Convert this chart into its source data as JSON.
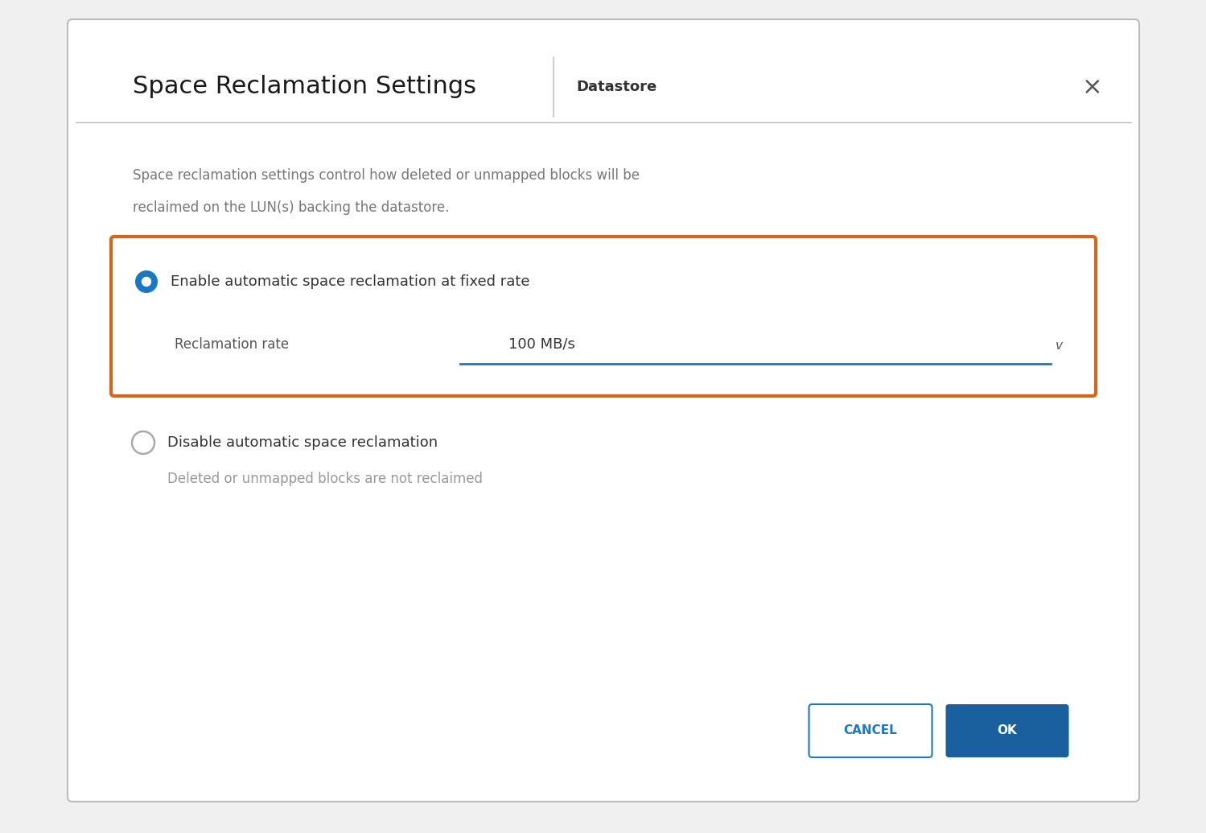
{
  "bg_color": "#f0f0f0",
  "dialog_bg": "#ffffff",
  "dialog_border": "#bbbbbb",
  "title_text": "Space Reclamation Settings",
  "divider_color": "#cccccc",
  "subtitle_text": "Datastore",
  "close_color": "#555555",
  "description_line1": "Space reclamation settings control how deleted or unmapped blocks will be",
  "description_line2": "reclaimed on the LUN(s) backing the datastore.",
  "desc_color": "#777777",
  "orange_box_color": "#d4651a",
  "radio_filled_color": "#1a78c2",
  "radio_empty_border": "#aaaaaa",
  "option1_text": "Enable automatic space reclamation at fixed rate",
  "option1_color": "#333333",
  "reclamation_label": "Reclamation rate",
  "reclamation_label_color": "#555555",
  "reclamation_value": "100 MB/s",
  "reclamation_value_color": "#333333",
  "dropdown_line_color": "#1a78c2",
  "chevron_color": "#555555",
  "option2_text": "Disable automatic space reclamation",
  "option2_color": "#333333",
  "option2_sub": "Deleted or unmapped blocks are not reclaimed",
  "option2_sub_color": "#999999",
  "cancel_text": "CANCEL",
  "cancel_border": "#1a78c2",
  "cancel_text_color": "#1a78c2",
  "ok_text": "OK",
  "ok_bg": "#1a5f9e",
  "ok_text_color": "#ffffff",
  "title_fontsize": 22,
  "subtitle_fontsize": 13,
  "desc_fontsize": 12,
  "option_fontsize": 13,
  "label_fontsize": 12,
  "value_fontsize": 13,
  "button_fontsize": 11
}
